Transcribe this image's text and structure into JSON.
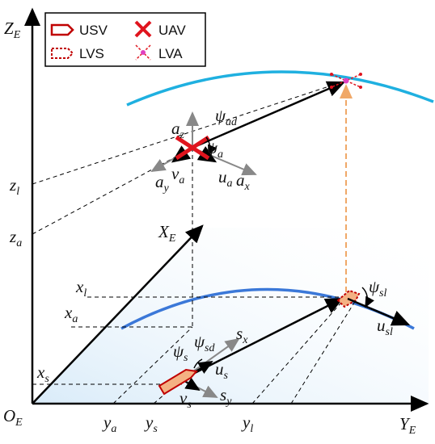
{
  "legend": [
    "USV",
    "UAV",
    "LVS",
    "LVA"
  ],
  "labels": {
    "zE": {
      "text": "Z",
      "sub": "E"
    },
    "xE": {
      "text": "X",
      "sub": "E"
    },
    "yE": {
      "text": "Y",
      "sub": "E"
    },
    "oE": {
      "text": "O",
      "sub": "E"
    },
    "zl": {
      "text": "z",
      "sub": "l"
    },
    "za": {
      "text": "z",
      "sub": "a"
    },
    "xl": {
      "text": "x",
      "sub": "l"
    },
    "xa": {
      "text": "x",
      "sub": "a"
    },
    "xs": {
      "text": "x",
      "sub": "s"
    },
    "ya": {
      "text": "y",
      "sub": "a"
    },
    "ys": {
      "text": "y",
      "sub": "s"
    },
    "yl": {
      "text": "y",
      "sub": "l"
    },
    "psiad": {
      "text": "ψ",
      "sub": "ad"
    },
    "az": {
      "text": "a",
      "sub": "z"
    },
    "psia": {
      "text": "ψ",
      "sub": "a"
    },
    "ay": {
      "text": "a",
      "sub": "y"
    },
    "va": {
      "text": "v",
      "sub": "a"
    },
    "ua": {
      "text": "u",
      "sub": "a"
    },
    "ax": {
      "text": "a",
      "sub": "x"
    },
    "psis": {
      "text": "ψ",
      "sub": "s"
    },
    "psisd": {
      "text": "ψ",
      "sub": "sd"
    },
    "sx": {
      "text": "s",
      "sub": "x"
    },
    "us": {
      "text": "u",
      "sub": "s"
    },
    "vs": {
      "text": "v",
      "sub": "s"
    },
    "sy": {
      "text": "s",
      "sub": "y"
    },
    "psisl": {
      "text": "ψ",
      "sub": "sl"
    },
    "usl": {
      "text": "u",
      "sub": "sl"
    }
  }
}
